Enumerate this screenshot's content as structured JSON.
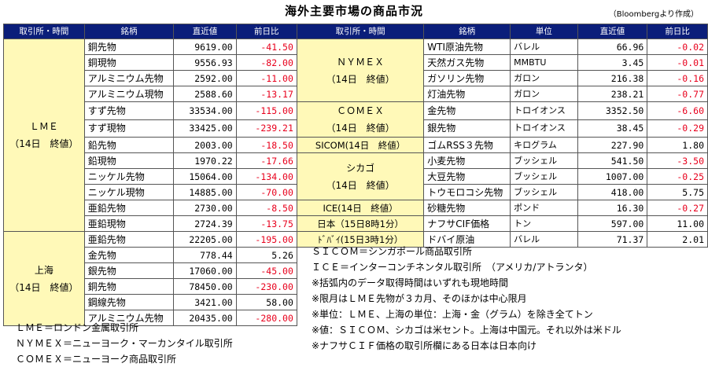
{
  "title": "海外主要市場の商品市況",
  "source": "（Bloombergより作成）",
  "headers": {
    "exchange": "取引所・時間",
    "item": "銘柄",
    "latest": "直近値",
    "change": "前日比",
    "unit": "単位"
  },
  "groups_left": [
    {
      "line1": "ＬＭＥ",
      "line2": "（14日　終値）"
    },
    {
      "line1": "上海",
      "line2": "（14日　終値）"
    }
  ],
  "groups_right": [
    {
      "line1": "ＮＹＭＥＸ",
      "line2": "（14日　終値）"
    },
    {
      "line1": "ＣＯＭＥＸ",
      "line2": "（14日　終値）"
    },
    {
      "line1": "SICOM(14日　終値）",
      "line2": ""
    },
    {
      "line1": "シカゴ",
      "line2": "（14日　終値）"
    },
    {
      "line1": "ICE(14日　終値）",
      "line2": ""
    },
    {
      "line1": "日本（15日8時1分）",
      "line2": ""
    },
    {
      "line1": "ﾄﾞﾊﾞｲ(15日3時1分）",
      "line2": ""
    }
  ],
  "left_rows": [
    {
      "name": "銅先物",
      "latest": "9619.00",
      "change": "-41.50"
    },
    {
      "name": "銅現物",
      "latest": "9556.93",
      "change": "-82.00"
    },
    {
      "name": "アルミニウム先物",
      "latest": "2592.00",
      "change": "-11.00"
    },
    {
      "name": "アルミニウム現物",
      "latest": "2588.60",
      "change": "-13.17"
    },
    {
      "name": "すず先物",
      "latest": "33534.00",
      "change": "-115.00"
    },
    {
      "name": "すず現物",
      "latest": "33425.00",
      "change": "-239.21"
    },
    {
      "name": "鉛先物",
      "latest": "2003.00",
      "change": "-18.50"
    },
    {
      "name": "鉛現物",
      "latest": "1970.22",
      "change": "-17.66"
    },
    {
      "name": "ニッケル先物",
      "latest": "15064.00",
      "change": "-134.00"
    },
    {
      "name": "ニッケル現物",
      "latest": "14885.00",
      "change": "-70.00"
    },
    {
      "name": "亜鉛先物",
      "latest": "2730.00",
      "change": "-8.50"
    },
    {
      "name": "亜鉛現物",
      "latest": "2724.39",
      "change": "-13.75"
    },
    {
      "name": "亜鉛先物",
      "latest": "22205.00",
      "change": "-195.00"
    },
    {
      "name": "金先物",
      "latest": "778.44",
      "change": "5.26"
    },
    {
      "name": "銀先物",
      "latest": "17060.00",
      "change": "-45.00"
    },
    {
      "name": "銅先物",
      "latest": "78450.00",
      "change": "-230.00"
    },
    {
      "name": "鋼線先物",
      "latest": "3421.00",
      "change": "58.00"
    },
    {
      "name": "アルミニウム先物",
      "latest": "20435.00",
      "change": "-280.00"
    }
  ],
  "right_rows": [
    {
      "name": "WTI原油先物",
      "unit": "バレル",
      "latest": "66.96",
      "change": "-0.02"
    },
    {
      "name": "天然ガス先物",
      "unit": "MMBTU",
      "latest": "3.45",
      "change": "-0.01"
    },
    {
      "name": "ガソリン先物",
      "unit": "ガロン",
      "latest": "216.38",
      "change": "-0.16"
    },
    {
      "name": "灯油先物",
      "unit": "ガロン",
      "latest": "238.21",
      "change": "-0.77"
    },
    {
      "name": "金先物",
      "unit": "トロイオンス",
      "latest": "3352.50",
      "change": "-6.60"
    },
    {
      "name": "銀先物",
      "unit": "トロイオンス",
      "latest": "38.45",
      "change": "-0.29"
    },
    {
      "name": "ゴムRSS３先物",
      "unit": "キログラム",
      "latest": "227.90",
      "change": "1.80"
    },
    {
      "name": "小麦先物",
      "unit": "ブッシェル",
      "latest": "541.50",
      "change": "-3.50"
    },
    {
      "name": "大豆先物",
      "unit": "ブッシェル",
      "latest": "1007.00",
      "change": "-0.25"
    },
    {
      "name": "トウモロコシ先物",
      "unit": "ブッシェル",
      "latest": "418.00",
      "change": "5.75"
    },
    {
      "name": "砂糖先物",
      "unit": "ポンド",
      "latest": "16.30",
      "change": "-0.27"
    },
    {
      "name": "ナフサCIF価格",
      "unit": "トン",
      "latest": "597.00",
      "change": "11.00"
    },
    {
      "name": "ドバイ原油",
      "unit": "バレル",
      "latest": "71.37",
      "change": "2.01"
    }
  ],
  "notes_right": [
    "ＳＩＣＯＭ＝シンガポール商品取引所",
    "ＩＣＥ＝インターコンチネンタル取引所　（アメリカ/アトランタ）",
    "※括弧内のデータ取得時間はいずれも現地時間",
    "※限月はＬＭＥ先物が３カ月、そのほかは中心限月",
    "※単位：ＬＭＥ、上海の単位：上海・金（グラム）を除き全てトン",
    "※値：ＳＩＣＯＭ、シカゴは米セント。上海は中国元。それ以外は米ドル",
    "※ナフサＣＩＦ価格の取引所欄にある日本は日本向け"
  ],
  "notes_left": [
    "ＬＭＥ＝ロンドン金属取引所",
    "ＮＹＭＥＸ＝ニューヨーク・マーカンタイル取引所",
    "ＣＯＭＥＸ＝ニューヨーク商品取引所"
  ]
}
